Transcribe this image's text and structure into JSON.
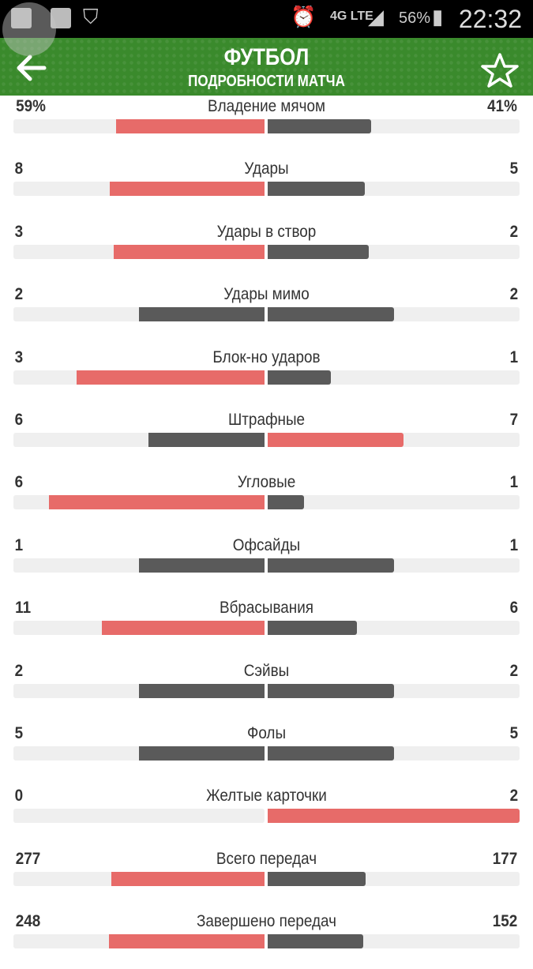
{
  "status_bar": {
    "battery": "56%",
    "time": "22:32",
    "network": "4G LTE"
  },
  "header": {
    "title": "ФУТБОЛ",
    "subtitle": "ПОДРОБНОСТИ МАТЧА"
  },
  "colors": {
    "leader": "#e76b69",
    "other": "#5a5a5a",
    "track": "#efefef",
    "header": "#3a8a2c"
  },
  "stats": [
    {
      "label": "Владение мячом",
      "home": "59%",
      "away": "41%",
      "h": 59,
      "a": 41
    },
    {
      "label": "Удары",
      "home": "8",
      "away": "5",
      "h": 8,
      "a": 5
    },
    {
      "label": "Удары в створ",
      "home": "3",
      "away": "2",
      "h": 3,
      "a": 2
    },
    {
      "label": "Удары мимо",
      "home": "2",
      "away": "2",
      "h": 2,
      "a": 2
    },
    {
      "label": "Блок-но ударов",
      "home": "3",
      "away": "1",
      "h": 3,
      "a": 1
    },
    {
      "label": "Штрафные",
      "home": "6",
      "away": "7",
      "h": 6,
      "a": 7
    },
    {
      "label": "Угловые",
      "home": "6",
      "away": "1",
      "h": 6,
      "a": 1
    },
    {
      "label": "Офсайды",
      "home": "1",
      "away": "1",
      "h": 1,
      "a": 1
    },
    {
      "label": "Вбрасывания",
      "home": "11",
      "away": "6",
      "h": 11,
      "a": 6
    },
    {
      "label": "Сэйвы",
      "home": "2",
      "away": "2",
      "h": 2,
      "a": 2
    },
    {
      "label": "Фолы",
      "home": "5",
      "away": "5",
      "h": 5,
      "a": 5
    },
    {
      "label": "Желтые карточки",
      "home": "0",
      "away": "2",
      "h": 0,
      "a": 2
    },
    {
      "label": "Всего передач",
      "home": "277",
      "away": "177",
      "h": 277,
      "a": 177
    },
    {
      "label": "Завершено передач",
      "home": "248",
      "away": "152",
      "h": 248,
      "a": 152
    }
  ]
}
